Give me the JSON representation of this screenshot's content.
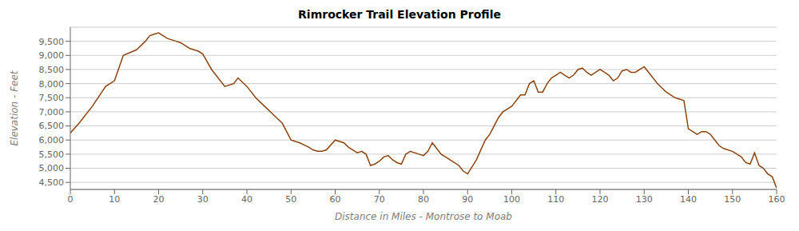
{
  "chart_data": {
    "type": "line",
    "title": "Rimrocker Trail Elevation Profile",
    "xlabel": "Distance in Miles - Montrose to Moab",
    "ylabel": "Elevation - Feet",
    "color": "#8B4513",
    "grid": true,
    "xlim": [
      0,
      160
    ],
    "ylim": [
      4250,
      10000
    ],
    "xticks": [
      0,
      10,
      20,
      30,
      40,
      50,
      60,
      70,
      80,
      90,
      100,
      110,
      120,
      130,
      140,
      150,
      160
    ],
    "yticks": [
      {
        "value": 4500,
        "label": "4,500"
      },
      {
        "value": 5000,
        "label": "5,000"
      },
      {
        "value": 5500,
        "label": "5,500"
      },
      {
        "value": 6000,
        "label": "6,000"
      },
      {
        "value": 6500,
        "label": "6,500"
      },
      {
        "value": 7000,
        "label": "7,000"
      },
      {
        "value": 7500,
        "label": "7,500"
      },
      {
        "value": 8000,
        "label": "8,000"
      },
      {
        "value": 8500,
        "label": "8,500"
      },
      {
        "value": 9000,
        "label": "9,000"
      },
      {
        "value": 9500,
        "label": "9,500"
      }
    ],
    "x": [
      0,
      2,
      5,
      8,
      10,
      12,
      15,
      17,
      18,
      19,
      20,
      22,
      24,
      25,
      26,
      27,
      28,
      29,
      30,
      32,
      33,
      35,
      37,
      38,
      40,
      42,
      44,
      46,
      48,
      50,
      52,
      54,
      55,
      56,
      57,
      58,
      60,
      62,
      63,
      64,
      65,
      66,
      67,
      68,
      69,
      70,
      71,
      72,
      73,
      74,
      75,
      76,
      77,
      78,
      79,
      80,
      81,
      82,
      83,
      84,
      85,
      86,
      87,
      88,
      89,
      90,
      92,
      94,
      95,
      96,
      97,
      98,
      100,
      102,
      103,
      104,
      105,
      106,
      107,
      108,
      109,
      110,
      111,
      112,
      113,
      114,
      115,
      116,
      117,
      118,
      119,
      120,
      121,
      122,
      123,
      124,
      125,
      126,
      127,
      128,
      129,
      130,
      132,
      133,
      135,
      137,
      138,
      139,
      140,
      141,
      142,
      143,
      144,
      145,
      146,
      147,
      148,
      150,
      152,
      153,
      154,
      155,
      156,
      157,
      158,
      159,
      160
    ],
    "values": [
      6250,
      6600,
      7200,
      7900,
      8100,
      9000,
      9200,
      9500,
      9700,
      9750,
      9800,
      9600,
      9500,
      9450,
      9350,
      9250,
      9200,
      9150,
      9050,
      8500,
      8300,
      7900,
      8000,
      8200,
      7900,
      7500,
      7200,
      6900,
      6600,
      6000,
      5900,
      5750,
      5650,
      5600,
      5600,
      5650,
      6000,
      5900,
      5750,
      5650,
      5550,
      5600,
      5500,
      5100,
      5150,
      5250,
      5400,
      5450,
      5300,
      5200,
      5150,
      5500,
      5600,
      5550,
      5500,
      5450,
      5600,
      5900,
      5700,
      5500,
      5400,
      5300,
      5200,
      5100,
      4900,
      4800,
      5300,
      6000,
      6200,
      6500,
      6800,
      7000,
      7200,
      7600,
      7600,
      8000,
      8100,
      7700,
      7700,
      8000,
      8200,
      8300,
      8400,
      8300,
      8200,
      8300,
      8500,
      8550,
      8400,
      8300,
      8400,
      8500,
      8400,
      8300,
      8100,
      8200,
      8450,
      8500,
      8400,
      8400,
      8500,
      8600,
      8200,
      8000,
      7700,
      7500,
      7450,
      7400,
      6400,
      6300,
      6200,
      6300,
      6300,
      6200,
      6000,
      5800,
      5700,
      5600,
      5400,
      5200,
      5150,
      5550,
      5100,
      5000,
      4800,
      4700,
      4300
    ]
  }
}
